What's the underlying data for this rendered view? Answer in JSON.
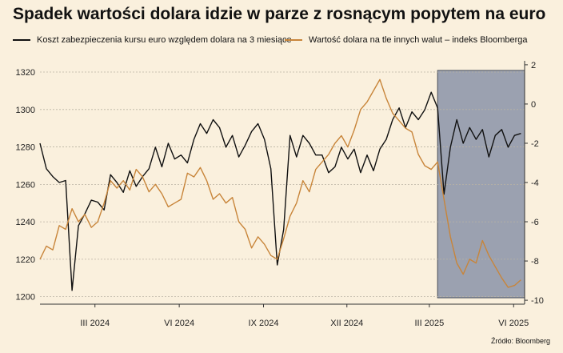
{
  "title": "Spadek wartości dolara idzie w parze z rosnącym popytem na euro",
  "source": "Źródło: Bloomberg",
  "colors": {
    "black_series": "#111111",
    "orange_series": "#c8853a",
    "shade": "#8a93a8",
    "grid": "#b9b2a3",
    "background": "#faf0dd"
  },
  "chart_data": {
    "type": "line",
    "title": "Spadek wartości dolara idzie w parze z rosnącym popytem na euro",
    "x_tick_labels": [
      "III 2024",
      "VI 2024",
      "IX 2024",
      "XII 2024",
      "III 2025",
      "VI 2025"
    ],
    "x_tick_dates": [
      "2024-03-01",
      "2024-06-01",
      "2024-09-01",
      "2024-12-01",
      "2025-03-01",
      "2025-06-01"
    ],
    "xlim": [
      "2024-01-01",
      "2025-06-13"
    ],
    "y_left": {
      "ticks": [
        1200,
        1220,
        1240,
        1260,
        1280,
        1300,
        1320
      ],
      "range": [
        1196,
        1326
      ]
    },
    "y_right": {
      "ticks": [
        2,
        0,
        -2,
        -4,
        -6,
        -8,
        -10
      ],
      "range": [
        -10.2,
        2.2
      ]
    },
    "grid": "horizontal-dashed",
    "legend_position": "top-left",
    "shaded_region": {
      "start": "2025-03-10",
      "end": "2025-06-13"
    },
    "series": [
      {
        "name": "Koszt zabezpieczenia kursu euro względem dolara na 3 miesiące",
        "axis": "right",
        "color": "#111111",
        "x": [
          "2024-01-01",
          "2024-01-08",
          "2024-01-15",
          "2024-01-22",
          "2024-01-29",
          "2024-02-05",
          "2024-02-12",
          "2024-02-19",
          "2024-02-26",
          "2024-03-04",
          "2024-03-11",
          "2024-03-18",
          "2024-03-25",
          "2024-04-01",
          "2024-04-08",
          "2024-04-15",
          "2024-04-22",
          "2024-04-29",
          "2024-05-06",
          "2024-05-13",
          "2024-05-20",
          "2024-05-27",
          "2024-06-03",
          "2024-06-10",
          "2024-06-17",
          "2024-06-24",
          "2024-07-01",
          "2024-07-08",
          "2024-07-15",
          "2024-07-22",
          "2024-07-29",
          "2024-08-05",
          "2024-08-12",
          "2024-08-19",
          "2024-08-26",
          "2024-09-02",
          "2024-09-09",
          "2024-09-16",
          "2024-09-23",
          "2024-09-30",
          "2024-10-07",
          "2024-10-14",
          "2024-10-21",
          "2024-10-28",
          "2024-11-04",
          "2024-11-11",
          "2024-11-18",
          "2024-11-25",
          "2024-12-02",
          "2024-12-09",
          "2024-12-16",
          "2024-12-23",
          "2024-12-30",
          "2025-01-06",
          "2025-01-13",
          "2025-01-20",
          "2025-01-27",
          "2025-02-03",
          "2025-02-10",
          "2025-02-17",
          "2025-02-24",
          "2025-03-03",
          "2025-03-10",
          "2025-03-17",
          "2025-03-24",
          "2025-03-31",
          "2025-04-07",
          "2025-04-14",
          "2025-04-21",
          "2025-04-28",
          "2025-05-05",
          "2025-05-12",
          "2025-05-19",
          "2025-05-26",
          "2025-06-02",
          "2025-06-09"
        ],
        "values": [
          -2.0,
          -3.3,
          -3.7,
          -4.0,
          -3.9,
          -9.5,
          -6.2,
          -5.6,
          -4.9,
          -5.0,
          -5.4,
          -3.6,
          -4.0,
          -4.5,
          -3.4,
          -4.2,
          -3.7,
          -3.3,
          -2.2,
          -3.2,
          -2.0,
          -2.8,
          -2.6,
          -3.0,
          -1.8,
          -1.0,
          -1.5,
          -0.8,
          -1.2,
          -2.2,
          -1.6,
          -2.7,
          -2.1,
          -1.4,
          -1.0,
          -1.8,
          -3.3,
          -8.2,
          -6.4,
          -1.6,
          -2.7,
          -1.6,
          -2.0,
          -2.6,
          -2.6,
          -3.5,
          -3.2,
          -2.2,
          -2.8,
          -2.3,
          -3.5,
          -2.6,
          -3.4,
          -2.3,
          -1.8,
          -0.8,
          -0.2,
          -1.2,
          -0.4,
          -0.8,
          -0.3,
          0.6,
          -0.2,
          -4.6,
          -2.2,
          -0.8,
          -2.0,
          -1.2,
          -1.8,
          -1.3,
          -2.7,
          -1.6,
          -1.3,
          -2.2,
          -1.6,
          -1.5
        ]
      },
      {
        "name": "Wartość dolara na tle innych walut – indeks Bloomberga",
        "axis": "left",
        "color": "#c8853a",
        "x": [
          "2024-01-01",
          "2024-01-08",
          "2024-01-15",
          "2024-01-22",
          "2024-01-29",
          "2024-02-05",
          "2024-02-12",
          "2024-02-19",
          "2024-02-26",
          "2024-03-04",
          "2024-03-11",
          "2024-03-18",
          "2024-03-25",
          "2024-04-01",
          "2024-04-08",
          "2024-04-15",
          "2024-04-22",
          "2024-04-29",
          "2024-05-06",
          "2024-05-13",
          "2024-05-20",
          "2024-05-27",
          "2024-06-03",
          "2024-06-10",
          "2024-06-17",
          "2024-06-24",
          "2024-07-01",
          "2024-07-08",
          "2024-07-15",
          "2024-07-22",
          "2024-07-29",
          "2024-08-05",
          "2024-08-12",
          "2024-08-19",
          "2024-08-26",
          "2024-09-02",
          "2024-09-09",
          "2024-09-16",
          "2024-09-23",
          "2024-09-30",
          "2024-10-07",
          "2024-10-14",
          "2024-10-21",
          "2024-10-28",
          "2024-11-04",
          "2024-11-11",
          "2024-11-18",
          "2024-11-25",
          "2024-12-02",
          "2024-12-09",
          "2024-12-16",
          "2024-12-23",
          "2024-12-30",
          "2025-01-06",
          "2025-01-13",
          "2025-01-20",
          "2025-01-27",
          "2025-02-03",
          "2025-02-10",
          "2025-02-17",
          "2025-02-24",
          "2025-03-03",
          "2025-03-10",
          "2025-03-17",
          "2025-03-24",
          "2025-03-31",
          "2025-04-07",
          "2025-04-14",
          "2025-04-21",
          "2025-04-28",
          "2025-05-05",
          "2025-05-12",
          "2025-05-19",
          "2025-05-26",
          "2025-06-02",
          "2025-06-09"
        ],
        "values": [
          1220,
          1227,
          1225,
          1238,
          1236,
          1247,
          1240,
          1244,
          1237,
          1240,
          1250,
          1262,
          1258,
          1262,
          1257,
          1268,
          1264,
          1256,
          1260,
          1255,
          1248,
          1250,
          1252,
          1266,
          1264,
          1269,
          1262,
          1252,
          1255,
          1250,
          1253,
          1240,
          1236,
          1226,
          1232,
          1228,
          1222,
          1220,
          1231,
          1243,
          1250,
          1262,
          1256,
          1268,
          1272,
          1276,
          1282,
          1286,
          1280,
          1289,
          1300,
          1304,
          1310,
          1316,
          1306,
          1298,
          1294,
          1290,
          1288,
          1276,
          1270,
          1268,
          1272,
          1252,
          1232,
          1218,
          1212,
          1220,
          1218,
          1230,
          1222,
          1216,
          1210,
          1205,
          1206,
          1209
        ]
      }
    ]
  }
}
